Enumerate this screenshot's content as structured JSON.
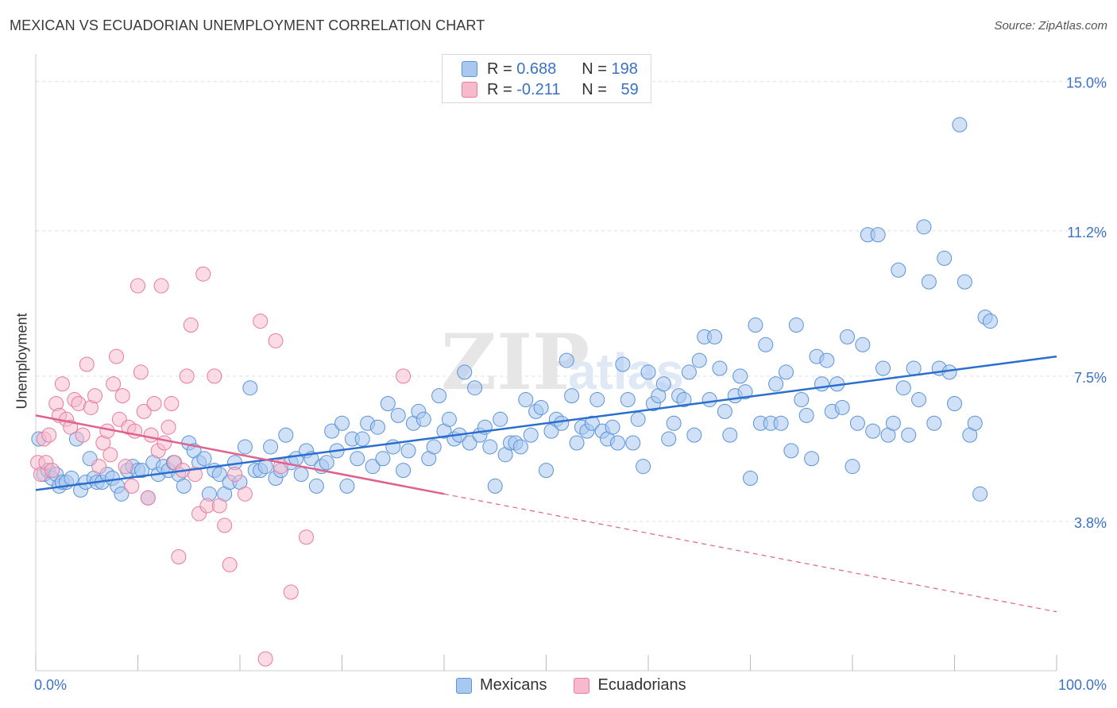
{
  "title": "MEXICAN VS ECUADORIAN UNEMPLOYMENT CORRELATION CHART",
  "source": "Source: ZipAtlas.com",
  "colors": {
    "mexicans_fill": "#a9c8f0",
    "mexicans_stroke": "#5b93d8",
    "mexicans_line": "#2b6fce",
    "ecuadorians_fill": "#f7b9cc",
    "ecuadorians_stroke": "#e97aa0",
    "ecuadorians_line": "#e0608e",
    "tick_label": "#3a72c4",
    "grid": "#dddddd"
  },
  "legend": {
    "rows": [
      {
        "r_label": "R =",
        "r_value": "0.688",
        "n_label": "N =",
        "n_value": "198"
      },
      {
        "r_label": "R =",
        "r_value": "-0.211",
        "n_label": "N =",
        "n_value": "59"
      }
    ]
  },
  "bottom_legend": [
    "Mexicans",
    "Ecuadorians"
  ],
  "chart_data": {
    "type": "scatter",
    "xlabel": "",
    "ylabel": "Unemployment",
    "xlim": [
      0,
      100
    ],
    "ylim": [
      0,
      15.5
    ],
    "x_tick_labels": [
      "0.0%",
      "100.0%"
    ],
    "y_ticks": [
      3.8,
      7.5,
      11.2,
      15.0
    ],
    "y_tick_labels": [
      "3.8%",
      "7.5%",
      "11.2%",
      "15.0%"
    ],
    "grid": true,
    "legend_position": "top-center",
    "watermark": "ZIPatlas",
    "series": [
      {
        "name": "Mexicans",
        "trend": {
          "x0": 0,
          "y0": 4.6,
          "x1": 100,
          "y1": 8.0
        },
        "points": [
          [
            0.3,
            5.9
          ],
          [
            0.8,
            5.0
          ],
          [
            1.2,
            5.1
          ],
          [
            1.6,
            4.9
          ],
          [
            2.0,
            5.0
          ],
          [
            2.3,
            4.7
          ],
          [
            2.6,
            4.8
          ],
          [
            3.0,
            4.8
          ],
          [
            3.5,
            4.9
          ],
          [
            4.0,
            5.9
          ],
          [
            4.4,
            4.6
          ],
          [
            4.9,
            4.8
          ],
          [
            5.3,
            5.4
          ],
          [
            5.7,
            4.9
          ],
          [
            6.0,
            4.8
          ],
          [
            6.5,
            4.8
          ],
          [
            7.0,
            5.0
          ],
          [
            7.5,
            4.9
          ],
          [
            8.0,
            4.7
          ],
          [
            8.4,
            4.5
          ],
          [
            9.0,
            5.1
          ],
          [
            9.5,
            5.2
          ],
          [
            10.0,
            5.1
          ],
          [
            10.4,
            5.1
          ],
          [
            11.0,
            4.4
          ],
          [
            11.5,
            5.3
          ],
          [
            12.0,
            5.0
          ],
          [
            12.5,
            5.2
          ],
          [
            13.0,
            5.1
          ],
          [
            13.5,
            5.3
          ],
          [
            14.0,
            5.0
          ],
          [
            14.5,
            4.7
          ],
          [
            15.0,
            5.8
          ],
          [
            15.5,
            5.6
          ],
          [
            16.0,
            5.3
          ],
          [
            16.5,
            5.4
          ],
          [
            17.0,
            4.5
          ],
          [
            17.5,
            5.1
          ],
          [
            18.0,
            5.0
          ],
          [
            18.5,
            4.5
          ],
          [
            19.0,
            4.8
          ],
          [
            19.5,
            5.3
          ],
          [
            20.0,
            4.8
          ],
          [
            20.5,
            5.7
          ],
          [
            21.0,
            7.2
          ],
          [
            21.5,
            5.1
          ],
          [
            22.0,
            5.1
          ],
          [
            22.5,
            5.2
          ],
          [
            23.0,
            5.7
          ],
          [
            23.5,
            4.9
          ],
          [
            24.0,
            5.1
          ],
          [
            24.5,
            6.0
          ],
          [
            25.0,
            5.3
          ],
          [
            25.5,
            5.4
          ],
          [
            26.0,
            5.0
          ],
          [
            26.5,
            5.6
          ],
          [
            27.0,
            5.4
          ],
          [
            27.5,
            4.7
          ],
          [
            28.0,
            5.2
          ],
          [
            28.5,
            5.3
          ],
          [
            29.0,
            6.1
          ],
          [
            29.5,
            5.6
          ],
          [
            30.0,
            6.3
          ],
          [
            30.5,
            4.7
          ],
          [
            31.0,
            5.9
          ],
          [
            31.5,
            5.4
          ],
          [
            32.0,
            5.9
          ],
          [
            32.5,
            6.3
          ],
          [
            33.0,
            5.2
          ],
          [
            33.5,
            6.2
          ],
          [
            34.0,
            5.4
          ],
          [
            34.5,
            6.8
          ],
          [
            35.0,
            5.7
          ],
          [
            35.5,
            6.5
          ],
          [
            36.0,
            5.1
          ],
          [
            36.5,
            5.6
          ],
          [
            37.0,
            6.3
          ],
          [
            37.5,
            6.6
          ],
          [
            38.0,
            6.4
          ],
          [
            38.5,
            5.4
          ],
          [
            39.0,
            5.7
          ],
          [
            39.5,
            7.0
          ],
          [
            40.0,
            6.1
          ],
          [
            40.5,
            6.4
          ],
          [
            41.0,
            5.9
          ],
          [
            41.5,
            6.0
          ],
          [
            42.0,
            7.6
          ],
          [
            42.5,
            5.8
          ],
          [
            43.0,
            7.2
          ],
          [
            43.5,
            6.0
          ],
          [
            44.0,
            6.2
          ],
          [
            44.5,
            5.7
          ],
          [
            45.0,
            4.7
          ],
          [
            45.5,
            6.4
          ],
          [
            46.0,
            5.5
          ],
          [
            46.5,
            5.8
          ],
          [
            47.0,
            5.8
          ],
          [
            47.5,
            5.7
          ],
          [
            48.0,
            6.9
          ],
          [
            48.5,
            6.0
          ],
          [
            49.0,
            6.6
          ],
          [
            49.5,
            6.7
          ],
          [
            50.0,
            5.1
          ],
          [
            50.5,
            6.1
          ],
          [
            51.0,
            6.4
          ],
          [
            51.5,
            6.3
          ],
          [
            52.0,
            7.9
          ],
          [
            52.5,
            7.0
          ],
          [
            53.0,
            5.8
          ],
          [
            53.5,
            6.2
          ],
          [
            54.0,
            6.1
          ],
          [
            54.5,
            6.3
          ],
          [
            55.0,
            6.9
          ],
          [
            55.5,
            6.1
          ],
          [
            56.0,
            5.9
          ],
          [
            56.5,
            6.2
          ],
          [
            57.0,
            5.8
          ],
          [
            57.5,
            7.8
          ],
          [
            58.0,
            6.9
          ],
          [
            58.5,
            5.8
          ],
          [
            59.0,
            6.4
          ],
          [
            59.5,
            5.2
          ],
          [
            60.0,
            7.6
          ],
          [
            60.5,
            6.8
          ],
          [
            61.0,
            7.0
          ],
          [
            61.5,
            7.3
          ],
          [
            62.0,
            5.9
          ],
          [
            62.5,
            6.3
          ],
          [
            63.0,
            7.0
          ],
          [
            63.5,
            6.9
          ],
          [
            64.0,
            7.6
          ],
          [
            64.5,
            6.0
          ],
          [
            65.0,
            7.9
          ],
          [
            65.5,
            8.5
          ],
          [
            66.0,
            6.9
          ],
          [
            66.5,
            8.5
          ],
          [
            67.0,
            7.7
          ],
          [
            67.5,
            6.6
          ],
          [
            68.0,
            6.0
          ],
          [
            68.5,
            7.0
          ],
          [
            69.0,
            7.5
          ],
          [
            69.5,
            7.1
          ],
          [
            70.0,
            4.9
          ],
          [
            70.5,
            8.8
          ],
          [
            71.0,
            6.3
          ],
          [
            71.5,
            8.3
          ],
          [
            72.0,
            6.3
          ],
          [
            72.5,
            7.3
          ],
          [
            73.0,
            6.3
          ],
          [
            73.5,
            7.6
          ],
          [
            74.0,
            5.6
          ],
          [
            74.5,
            8.8
          ],
          [
            75.0,
            6.9
          ],
          [
            75.5,
            6.5
          ],
          [
            76.0,
            5.4
          ],
          [
            76.5,
            8.0
          ],
          [
            77.0,
            7.3
          ],
          [
            77.5,
            7.9
          ],
          [
            78.0,
            6.6
          ],
          [
            78.5,
            7.3
          ],
          [
            79.0,
            6.7
          ],
          [
            79.5,
            8.5
          ],
          [
            80.0,
            5.2
          ],
          [
            80.5,
            6.3
          ],
          [
            81.0,
            8.3
          ],
          [
            81.5,
            11.1
          ],
          [
            82.0,
            6.1
          ],
          [
            82.5,
            11.1
          ],
          [
            83.0,
            7.7
          ],
          [
            83.5,
            6.0
          ],
          [
            84.0,
            6.3
          ],
          [
            84.5,
            10.2
          ],
          [
            85.0,
            7.2
          ],
          [
            85.5,
            6.0
          ],
          [
            86.0,
            7.7
          ],
          [
            86.5,
            6.9
          ],
          [
            87.0,
            11.3
          ],
          [
            87.5,
            9.9
          ],
          [
            88.0,
            6.3
          ],
          [
            88.5,
            7.7
          ],
          [
            89.0,
            10.5
          ],
          [
            89.5,
            7.6
          ],
          [
            90.0,
            6.8
          ],
          [
            90.5,
            13.9
          ],
          [
            91.0,
            9.9
          ],
          [
            91.5,
            6.0
          ],
          [
            92.0,
            6.3
          ],
          [
            92.5,
            4.5
          ],
          [
            93.0,
            9.0
          ],
          [
            93.5,
            8.9
          ]
        ]
      },
      {
        "name": "Ecuadorians",
        "trend": {
          "x0": 0,
          "y0": 6.5,
          "x1": 40,
          "y1": 4.5,
          "dash_x1": 100,
          "dash_y1": 1.5
        },
        "points": [
          [
            0.2,
            5.3
          ],
          [
            0.5,
            5.0
          ],
          [
            0.8,
            5.9
          ],
          [
            1.0,
            5.3
          ],
          [
            1.3,
            6.0
          ],
          [
            1.6,
            5.1
          ],
          [
            2.0,
            6.8
          ],
          [
            2.3,
            6.5
          ],
          [
            2.6,
            7.3
          ],
          [
            3.0,
            6.4
          ],
          [
            3.4,
            6.2
          ],
          [
            3.8,
            6.9
          ],
          [
            4.2,
            6.8
          ],
          [
            4.6,
            6.0
          ],
          [
            5.0,
            7.8
          ],
          [
            5.4,
            6.7
          ],
          [
            5.8,
            7.0
          ],
          [
            6.2,
            5.2
          ],
          [
            6.6,
            5.8
          ],
          [
            7.0,
            6.1
          ],
          [
            7.3,
            5.5
          ],
          [
            7.6,
            7.3
          ],
          [
            7.9,
            8.0
          ],
          [
            8.2,
            6.4
          ],
          [
            8.5,
            7.0
          ],
          [
            8.8,
            5.2
          ],
          [
            9.1,
            6.2
          ],
          [
            9.4,
            4.7
          ],
          [
            9.7,
            6.1
          ],
          [
            10.0,
            9.8
          ],
          [
            10.3,
            7.6
          ],
          [
            10.6,
            6.6
          ],
          [
            11.0,
            4.4
          ],
          [
            11.3,
            6.0
          ],
          [
            11.6,
            6.8
          ],
          [
            12.0,
            5.6
          ],
          [
            12.3,
            9.8
          ],
          [
            12.6,
            5.8
          ],
          [
            13.0,
            6.2
          ],
          [
            13.3,
            6.8
          ],
          [
            13.6,
            5.3
          ],
          [
            14.0,
            2.9
          ],
          [
            14.4,
            5.1
          ],
          [
            14.8,
            7.5
          ],
          [
            15.2,
            8.8
          ],
          [
            15.6,
            5.0
          ],
          [
            16.0,
            4.0
          ],
          [
            16.4,
            10.1
          ],
          [
            16.8,
            4.2
          ],
          [
            17.5,
            7.5
          ],
          [
            18.0,
            4.2
          ],
          [
            18.5,
            3.7
          ],
          [
            19.0,
            2.7
          ],
          [
            19.5,
            5.0
          ],
          [
            20.5,
            4.5
          ],
          [
            22.0,
            8.9
          ],
          [
            22.5,
            0.3
          ],
          [
            23.5,
            8.4
          ],
          [
            24.0,
            5.2
          ],
          [
            25.0,
            2.0
          ],
          [
            26.5,
            3.4
          ],
          [
            36.0,
            7.5
          ]
        ]
      }
    ]
  }
}
